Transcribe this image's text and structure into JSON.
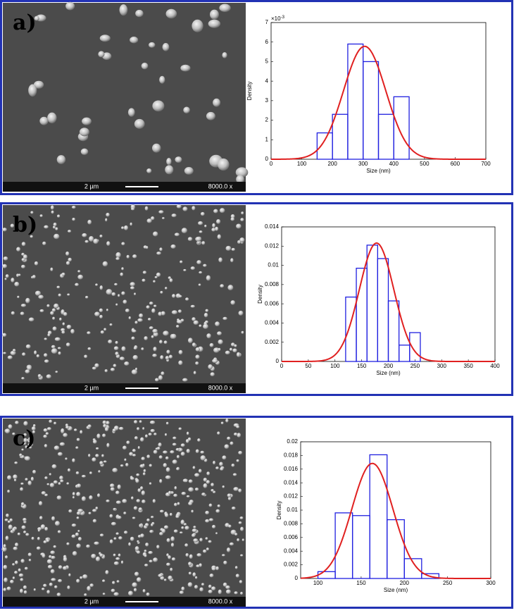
{
  "panels": [
    {
      "label": "a)",
      "scale_bar": "2 µm",
      "magnification": "8000.0 x"
    },
    {
      "label": "b)",
      "scale_bar": "2 µm",
      "magnification": "8000.0 x"
    },
    {
      "label": "c)",
      "scale_bar": "2 µm",
      "magnification": "8000.0 x"
    }
  ],
  "chart_data": [
    {
      "type": "histogram",
      "x_label": "Size (nm)",
      "y_label": "Density",
      "y_multiplier": "×10",
      "y_exponent": "-3",
      "bins": [
        150,
        200,
        250,
        300,
        350,
        400,
        450
      ],
      "values": [
        1.35,
        2.3,
        5.9,
        5.0,
        2.3,
        3.2
      ],
      "color": "#2020e0",
      "fit": {
        "mean": 305,
        "sd": 69,
        "color": "#e02020"
      },
      "xlim": [
        0,
        700
      ],
      "xticks": [
        0,
        100,
        200,
        300,
        400,
        500,
        600,
        700
      ],
      "ylim": [
        0,
        7
      ],
      "yticks": [
        0,
        1,
        2,
        3,
        4,
        5,
        6,
        7
      ]
    },
    {
      "type": "histogram",
      "x_label": "Size (nm)",
      "y_label": "Density",
      "bins": [
        120,
        140,
        160,
        180,
        200,
        220,
        240,
        260
      ],
      "values": [
        0.0067,
        0.0097,
        0.0121,
        0.0107,
        0.0063,
        0.0017,
        0.003
      ],
      "color": "#2020e0",
      "fit": {
        "mean": 178,
        "sd": 32.4,
        "color": "#e02020"
      },
      "xlim": [
        0,
        400
      ],
      "xticks": [
        0,
        50,
        100,
        150,
        200,
        250,
        300,
        350,
        400
      ],
      "ylim": [
        0,
        0.014
      ],
      "yticks": [
        0,
        0.002,
        0.004,
        0.006,
        0.008,
        0.01,
        0.012,
        0.014
      ]
    },
    {
      "type": "histogram",
      "x_label": "Size (nm)",
      "y_label": "Density",
      "bins": [
        100,
        120,
        140,
        160,
        180,
        200,
        220,
        240
      ],
      "values": [
        0.001,
        0.0096,
        0.0092,
        0.0181,
        0.0086,
        0.0029,
        0.0007
      ],
      "color": "#2020e0",
      "fit": {
        "mean": 163,
        "sd": 23.7,
        "color": "#e02020"
      },
      "xlim": [
        80,
        300
      ],
      "xticks": [
        100,
        150,
        200,
        250,
        300
      ],
      "ylim": [
        0,
        0.02
      ],
      "yticks": [
        0,
        0.002,
        0.004,
        0.006,
        0.008,
        0.01,
        0.012,
        0.014,
        0.016,
        0.018,
        0.02
      ]
    }
  ]
}
